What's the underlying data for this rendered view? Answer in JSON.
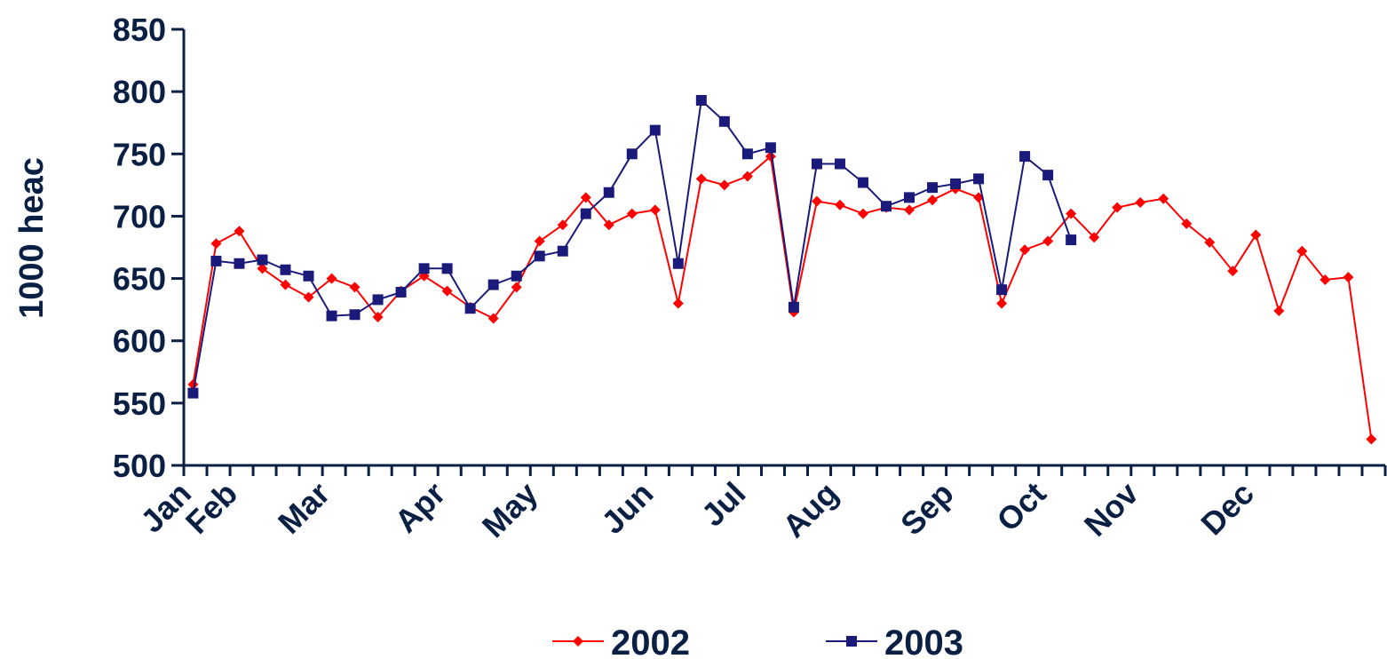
{
  "chart_data": {
    "type": "line",
    "ylabel": "1000 heac",
    "ylim": [
      500,
      850
    ],
    "yticks": [
      500,
      550,
      600,
      650,
      700,
      750,
      800,
      850
    ],
    "weeks_per_year": 52,
    "month_labels": [
      "Jan",
      "Feb",
      "Mar",
      "Apr",
      "May",
      "Jun",
      "Jul",
      "Aug",
      "Sep",
      "Oct",
      "Nov",
      "Dec"
    ],
    "month_start_week": [
      1,
      3,
      7,
      12,
      16,
      21,
      25,
      29,
      34,
      38,
      42,
      47
    ],
    "grid": false,
    "legend_position": "bottom",
    "series": [
      {
        "name": "2002",
        "color": "#ff0000",
        "marker": "diamond",
        "x": [
          1,
          2,
          3,
          4,
          5,
          6,
          7,
          8,
          9,
          10,
          11,
          12,
          13,
          14,
          15,
          16,
          17,
          18,
          19,
          20,
          21,
          22,
          23,
          24,
          25,
          26,
          27,
          28,
          29,
          30,
          31,
          32,
          33,
          34,
          35,
          36,
          37,
          38,
          39,
          40,
          41,
          42,
          43,
          44,
          45,
          46,
          47,
          48,
          49,
          50,
          51,
          52
        ],
        "values": [
          565,
          678,
          688,
          658,
          645,
          635,
          650,
          643,
          619,
          640,
          652,
          640,
          627,
          618,
          643,
          680,
          693,
          715,
          693,
          702,
          705,
          630,
          730,
          725,
          732,
          748,
          623,
          712,
          709,
          702,
          707,
          705,
          713,
          722,
          715,
          630,
          673,
          680,
          702,
          683,
          707,
          711,
          714,
          694,
          679,
          656,
          685,
          624,
          672,
          649,
          651,
          521
        ]
      },
      {
        "name": "2003",
        "color": "#1a1a7a",
        "marker": "square",
        "x": [
          1,
          2,
          3,
          4,
          5,
          6,
          7,
          8,
          9,
          10,
          11,
          12,
          13,
          14,
          15,
          16,
          17,
          18,
          19,
          20,
          21,
          22,
          23,
          24,
          25,
          26,
          27,
          28,
          29,
          30,
          31,
          32,
          33,
          34,
          35,
          36,
          37,
          38,
          39
        ],
        "values": [
          558,
          664,
          662,
          665,
          657,
          652,
          620,
          621,
          633,
          639,
          658,
          658,
          626,
          645,
          652,
          668,
          672,
          702,
          719,
          750,
          769,
          662,
          793,
          776,
          750,
          755,
          627,
          742,
          742,
          727,
          708,
          715,
          723,
          726,
          730,
          641,
          748,
          733,
          681
        ]
      }
    ]
  }
}
